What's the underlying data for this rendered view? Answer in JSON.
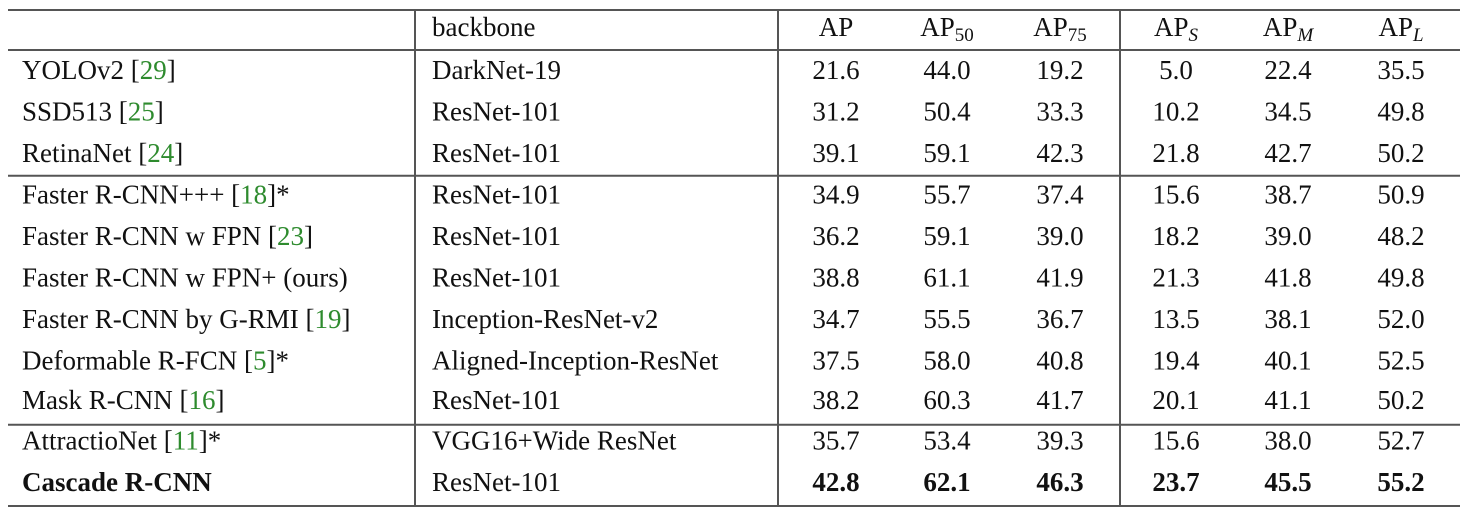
{
  "table": {
    "header": {
      "method": null,
      "backbone": "backbone",
      "metrics": [
        {
          "base": "AP",
          "sub": null,
          "italic": false
        },
        {
          "base": "AP",
          "sub": "50",
          "italic": false
        },
        {
          "base": "AP",
          "sub": "75",
          "italic": false
        },
        {
          "base": "AP",
          "sub": "S",
          "italic": true
        },
        {
          "base": "AP",
          "sub": "M",
          "italic": true
        },
        {
          "base": "AP",
          "sub": "L",
          "italic": true
        }
      ]
    },
    "groups": [
      [
        {
          "label": [
            {
              "text": "YOLOv2 [",
              "cite": false
            },
            {
              "text": "29",
              "cite": true
            },
            {
              "text": "]",
              "cite": false
            }
          ],
          "backbone": "DarkNet-19",
          "values": [
            "21.6",
            "44.0",
            "19.2",
            "5.0",
            "22.4",
            "35.5"
          ],
          "bold": false
        },
        {
          "label": [
            {
              "text": "SSD513 [",
              "cite": false
            },
            {
              "text": "25",
              "cite": true
            },
            {
              "text": "]",
              "cite": false
            }
          ],
          "backbone": "ResNet-101",
          "values": [
            "31.2",
            "50.4",
            "33.3",
            "10.2",
            "34.5",
            "49.8"
          ],
          "bold": false
        },
        {
          "label": [
            {
              "text": "RetinaNet [",
              "cite": false
            },
            {
              "text": "24",
              "cite": true
            },
            {
              "text": "]",
              "cite": false
            }
          ],
          "backbone": "ResNet-101",
          "values": [
            "39.1",
            "59.1",
            "42.3",
            "21.8",
            "42.7",
            "50.2"
          ],
          "bold": false
        }
      ],
      [
        {
          "label": [
            {
              "text": "Faster R-CNN+++ [",
              "cite": false
            },
            {
              "text": "18",
              "cite": true
            },
            {
              "text": "]*",
              "cite": false
            }
          ],
          "backbone": "ResNet-101",
          "values": [
            "34.9",
            "55.7",
            "37.4",
            "15.6",
            "38.7",
            "50.9"
          ],
          "bold": false
        },
        {
          "label": [
            {
              "text": "Faster R-CNN w FPN [",
              "cite": false
            },
            {
              "text": "23",
              "cite": true
            },
            {
              "text": "]",
              "cite": false
            }
          ],
          "backbone": "ResNet-101",
          "values": [
            "36.2",
            "59.1",
            "39.0",
            "18.2",
            "39.0",
            "48.2"
          ],
          "bold": false
        },
        {
          "label": [
            {
              "text": "Faster R-CNN w FPN+ (ours)",
              "cite": false
            }
          ],
          "backbone": "ResNet-101",
          "values": [
            "38.8",
            "61.1",
            "41.9",
            "21.3",
            "41.8",
            "49.8"
          ],
          "bold": false
        },
        {
          "label": [
            {
              "text": "Faster R-CNN by G-RMI [",
              "cite": false
            },
            {
              "text": "19",
              "cite": true
            },
            {
              "text": "]",
              "cite": false
            }
          ],
          "backbone": "Inception-ResNet-v2",
          "values": [
            "34.7",
            "55.5",
            "36.7",
            "13.5",
            "38.1",
            "52.0"
          ],
          "bold": false
        },
        {
          "label": [
            {
              "text": "Deformable R-FCN [",
              "cite": false
            },
            {
              "text": "5",
              "cite": true
            },
            {
              "text": "]*",
              "cite": false
            }
          ],
          "backbone": "Aligned-Inception-ResNet",
          "values": [
            "37.5",
            "58.0",
            "40.8",
            "19.4",
            "40.1",
            "52.5"
          ],
          "bold": false
        },
        {
          "label": [
            {
              "text": "Mask R-CNN [",
              "cite": false
            },
            {
              "text": "16",
              "cite": true
            },
            {
              "text": "]",
              "cite": false
            }
          ],
          "backbone": "ResNet-101",
          "values": [
            "38.2",
            "60.3",
            "41.7",
            "20.1",
            "41.1",
            "50.2"
          ],
          "bold": false
        }
      ],
      [
        {
          "label": [
            {
              "text": "AttractioNet [",
              "cite": false
            },
            {
              "text": "11",
              "cite": true
            },
            {
              "text": "]*",
              "cite": false
            }
          ],
          "backbone": "VGG16+Wide ResNet",
          "values": [
            "35.7",
            "53.4",
            "39.3",
            "15.6",
            "38.0",
            "52.7"
          ],
          "bold": false
        },
        {
          "label": [
            {
              "text": "Cascade R-CNN",
              "cite": false
            }
          ],
          "backbone": "ResNet-101",
          "values": [
            "42.8",
            "62.1",
            "46.3",
            "23.7",
            "45.5",
            "55.2"
          ],
          "bold": true
        }
      ]
    ]
  }
}
